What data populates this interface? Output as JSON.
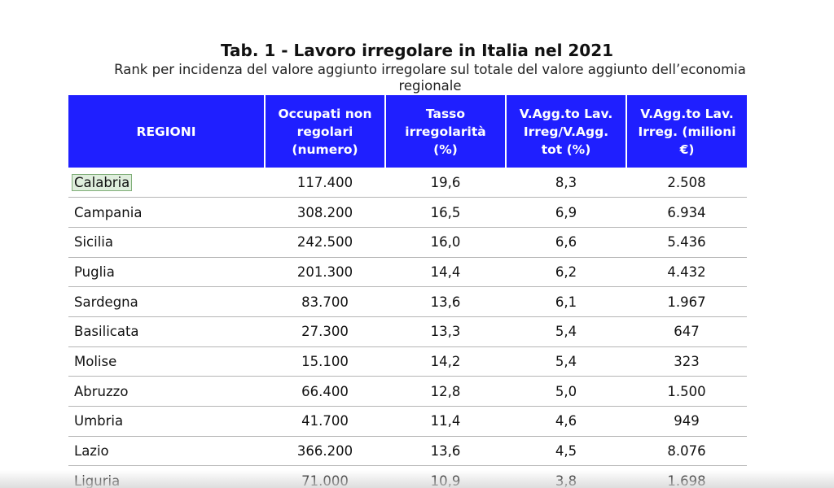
{
  "document": {
    "title": "Tab. 1 - Lavoro irregolare in Italia nel 2021",
    "subtitle": "Rank per incidenza del valore aggiunto irregolare sul totale del valore aggiunto dell’economia regionale"
  },
  "table": {
    "headers": [
      "REGIONI",
      "Occupati non regolari (numero)",
      "Tasso irregolarità (%)",
      "V.Agg.to Lav. Irreg/V.Agg. tot (%)",
      "V.Agg.to Lav. Irreg. (milioni €)"
    ],
    "rows": [
      [
        "Calabria",
        "117.400",
        "19,6",
        "8,3",
        "2.508"
      ],
      [
        "Campania",
        "308.200",
        "16,5",
        "6,9",
        "6.934"
      ],
      [
        "Sicilia",
        "242.500",
        "16,0",
        "6,6",
        "5.436"
      ],
      [
        "Puglia",
        "201.300",
        "14,4",
        "6,2",
        "4.432"
      ],
      [
        "Sardegna",
        "83.700",
        "13,6",
        "6,1",
        "1.967"
      ],
      [
        "Basilicata",
        "27.300",
        "13,3",
        "5,4",
        "647"
      ],
      [
        "Molise",
        "15.100",
        "14,2",
        "5,4",
        "323"
      ],
      [
        "Abruzzo",
        "66.400",
        "12,8",
        "5,0",
        "1.500"
      ],
      [
        "Umbria",
        "41.700",
        "11,4",
        "4,6",
        "949"
      ],
      [
        "Lazio",
        "366.200",
        "13,6",
        "4,5",
        "8.076"
      ],
      [
        "Liguria",
        "71.000",
        "10,9",
        "3,8",
        "1.698"
      ]
    ]
  },
  "colors": {
    "header_bg": "#1f1fff",
    "header_text": "#ffffff",
    "highlight_bg": "#dfeedd"
  }
}
